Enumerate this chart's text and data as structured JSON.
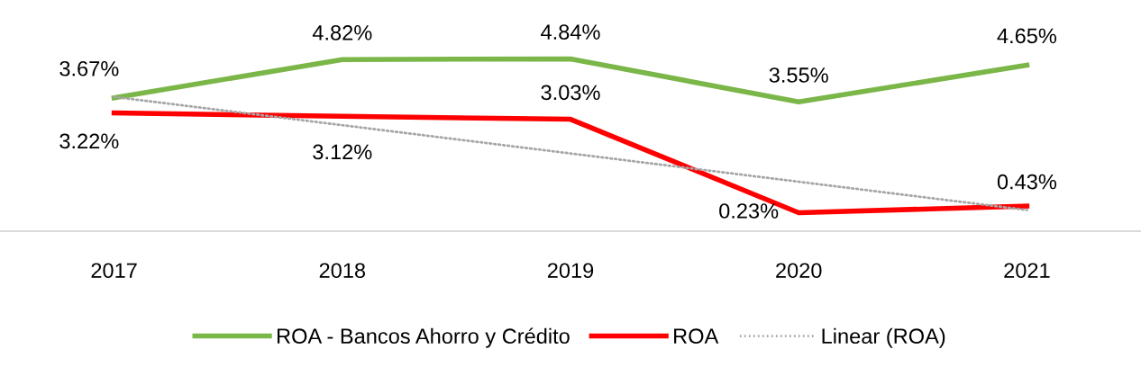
{
  "chart_data": {
    "type": "line",
    "categories": [
      "2017",
      "2018",
      "2019",
      "2020",
      "2021"
    ],
    "series": [
      {
        "name": "ROA - Bancos Ahorro y Crédito",
        "color": "#7ab648",
        "values": [
          3.67,
          4.82,
          4.84,
          3.55,
          4.65
        ],
        "value_labels": [
          "3.67%",
          "4.82%",
          "4.84%",
          "3.55%",
          "4.65%"
        ]
      },
      {
        "name": "ROA",
        "color": "#ff0000",
        "values": [
          3.22,
          3.12,
          3.03,
          0.23,
          0.43
        ],
        "value_labels": [
          "3.22%",
          "3.12%",
          "3.03%",
          "0.23%",
          "0.43%"
        ]
      },
      {
        "name": "Linear (ROA)",
        "color": "#a6a6a6",
        "line_style": "dotted",
        "values": [
          3.7,
          2.853,
          2.006,
          1.159,
          0.312
        ]
      }
    ],
    "tick_labels": "x",
    "grid": false,
    "legend": "bottom",
    "marker": "none"
  }
}
